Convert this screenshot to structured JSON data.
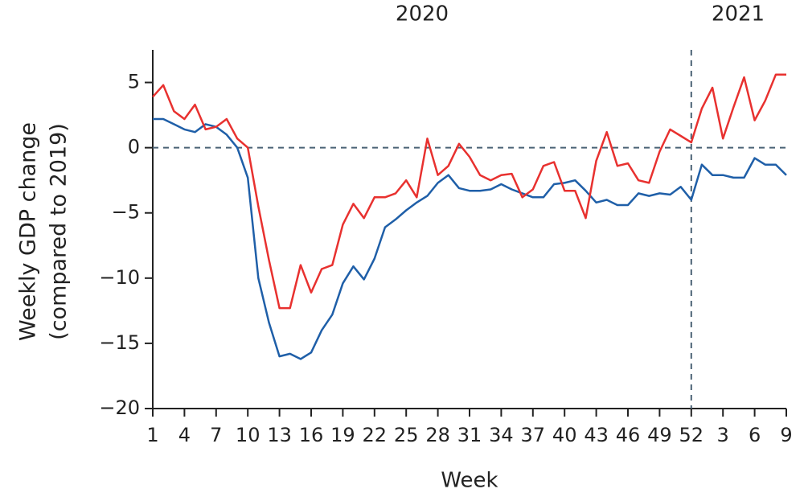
{
  "chart_data": {
    "type": "line",
    "y_label": [
      "Weekly GDP change",
      "(compared to 2019)"
    ],
    "x_label": "Week",
    "annotations": [
      "2020",
      "2021"
    ],
    "categories": [
      "1",
      null,
      null,
      "4",
      null,
      null,
      "7",
      null,
      null,
      "10",
      null,
      null,
      "13",
      null,
      null,
      "16",
      null,
      null,
      "19",
      null,
      null,
      "22",
      null,
      null,
      "25",
      null,
      null,
      "28",
      null,
      null,
      "31",
      null,
      null,
      "34",
      null,
      null,
      "37",
      null,
      null,
      "40",
      null,
      null,
      "43",
      null,
      null,
      "46",
      null,
      null,
      "49",
      null,
      null,
      "52",
      null,
      null,
      "3",
      null,
      null,
      "6",
      null,
      null,
      "9"
    ],
    "series": [
      {
        "color": "#1f5fa8",
        "values": [
          2.2,
          2.2,
          1.8,
          1.4,
          1.2,
          1.8,
          1.6,
          1.0,
          0.0,
          -2.3,
          -10.0,
          -13.4,
          -16.0,
          -15.8,
          -16.2,
          -15.7,
          -14.0,
          -12.8,
          -10.4,
          -9.1,
          -10.1,
          -8.5,
          -6.1,
          -5.5,
          -4.8,
          -4.2,
          -3.7,
          -2.7,
          -2.1,
          -3.1,
          -3.3,
          -3.3,
          -3.2,
          -2.8,
          -3.2,
          -3.5,
          -3.8,
          -3.8,
          -2.8,
          -2.7,
          -2.5,
          -3.3,
          -4.2,
          -4.0,
          -4.4,
          -4.4,
          -3.5,
          -3.7,
          -3.5,
          -3.6,
          -3.0,
          -4.0,
          -1.3,
          -2.1,
          -2.1,
          -2.3,
          -2.3,
          -0.8,
          -1.3,
          -1.3,
          -2.1
        ]
      },
      {
        "color": "#e8312f",
        "values": [
          3.9,
          4.8,
          2.8,
          2.2,
          3.3,
          1.4,
          1.6,
          2.2,
          0.7,
          0.0,
          -4.5,
          -8.6,
          -12.3,
          -12.3,
          -9.0,
          -11.1,
          -9.3,
          -9.0,
          -5.9,
          -4.3,
          -5.4,
          -3.8,
          -3.8,
          -3.5,
          -2.5,
          -3.8,
          0.7,
          -2.1,
          -1.4,
          0.3,
          -0.7,
          -2.1,
          -2.5,
          -2.1,
          -2.0,
          -3.8,
          -3.2,
          -1.4,
          -1.1,
          -3.3,
          -3.3,
          -5.4,
          -1.0,
          1.2,
          -1.4,
          -1.2,
          -2.5,
          -2.7,
          -0.3,
          1.4,
          0.9,
          0.4,
          3.0,
          4.6,
          0.7,
          3.1,
          5.4,
          2.1,
          3.6,
          5.6,
          5.6
        ]
      }
    ],
    "ylim": [
      -20,
      7.5
    ],
    "yticks": [
      5,
      0,
      {
        "value": -5,
        "label": "−5"
      },
      {
        "value": -10,
        "label": "−10"
      },
      {
        "value": -15,
        "label": "−15"
      },
      {
        "value": -20,
        "label": "−20"
      }
    ],
    "hline": 0,
    "vline_category": "52",
    "grid": false
  }
}
